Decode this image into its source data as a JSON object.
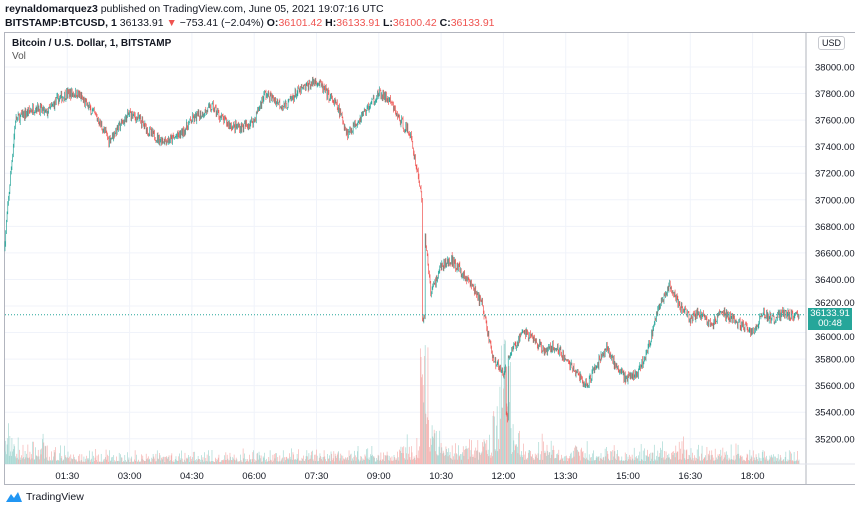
{
  "header": {
    "author": "reynaldomarquez3",
    "published": "published on TradingView.com, June 05, 2021 19:07:16 UTC",
    "symbol": "BITSTAMP:BTCUSD, 1",
    "last": "36133.91",
    "change": "−753.41 (−2.04%)",
    "o_label": "O:",
    "o": "36101.42",
    "h_label": "H:",
    "h": "36133.91",
    "l_label": "L:",
    "l": "36100.42",
    "c_label": "C:",
    "c": "36133.91",
    "change_icon": "triangle-down-icon"
  },
  "legend": {
    "title": "Bitcoin / U.S. Dollar, 1, BITSTAMP",
    "volume": "Vol"
  },
  "currency": "USD",
  "price_label": {
    "price": "36133.91",
    "countdown": "00:48"
  },
  "footer": {
    "brand": "TradingView",
    "logo_icon": "tradingview-logo-icon"
  },
  "colors": {
    "up": "#26a69a",
    "down": "#ef5350",
    "up_vol": "#a7d8d3",
    "down_vol": "#f5b3b1",
    "grid": "#f0f3fa"
  },
  "chart_data": {
    "type": "candlestick",
    "interval": "1 minute",
    "grid": true,
    "ylim": [
      35050,
      38130
    ],
    "yticks": [
      "35200.00",
      "35400.00",
      "35600.00",
      "35800.00",
      "36000.00",
      "36200.00",
      "36400.00",
      "36600.00",
      "36800.00",
      "37000.00",
      "37200.00",
      "37400.00",
      "37600.00",
      "37800.00",
      "38000.00"
    ],
    "xticks": [
      "01:30",
      "03:00",
      "04:30",
      "06:00",
      "07:30",
      "09:00",
      "10:30",
      "12:00",
      "13:30",
      "15:00",
      "16:30",
      "18:00"
    ],
    "approx_close_every_15min": {
      "start": "00:00",
      "values": [
        36700,
        37600,
        37650,
        37700,
        37650,
        37750,
        37800,
        37800,
        37700,
        37600,
        37450,
        37550,
        37650,
        37600,
        37500,
        37450,
        37450,
        37500,
        37600,
        37650,
        37700,
        37600,
        37550,
        37550,
        37600,
        37800,
        37750,
        37700,
        37800,
        37850,
        37900,
        37800,
        37700,
        37500,
        37600,
        37700,
        37800,
        37750,
        37600,
        37500,
        37100,
        36300,
        36500,
        36550,
        36450,
        36350,
        36200,
        35800,
        35700,
        35900,
        36000,
        35950,
        35850,
        35900,
        35800,
        35700,
        35600,
        35750,
        35900,
        35700,
        35650,
        35700,
        35900,
        36200,
        36350,
        36200,
        36100,
        36150,
        36050,
        36150,
        36100,
        36050,
        36000,
        36150,
        36100,
        36150,
        36120,
        36133.91
      ]
    },
    "approx_volume_every_15min_relative": [
      3,
      2,
      2,
      2,
      1.5,
      1.5,
      1,
      1,
      1,
      1,
      1,
      1,
      1,
      1,
      1,
      1,
      1,
      1,
      1,
      1,
      1,
      1,
      1,
      1,
      1,
      1,
      1,
      1.2,
      1.5,
      1.5,
      1.2,
      1.2,
      1.5,
      1.5,
      1.2,
      1.2,
      1.5,
      1.5,
      2,
      2,
      6,
      4,
      3,
      2,
      2,
      2,
      3,
      5,
      5,
      3,
      2,
      2,
      2,
      1.5,
      1.5,
      1.5,
      1.5,
      1.5,
      1.5,
      1.5,
      1.5,
      1.5,
      1.5,
      2,
      2,
      2,
      1.5,
      1.5,
      1.5,
      1.5,
      1.5,
      1.2,
      1.2,
      1.2,
      1.2,
      1.2,
      1.2,
      1.2
    ],
    "last_price": 36133.91,
    "sharp_drop": {
      "time": "~10:05",
      "low": 36000
    },
    "session_low": {
      "time": "~12:05",
      "low": 35300
    }
  }
}
